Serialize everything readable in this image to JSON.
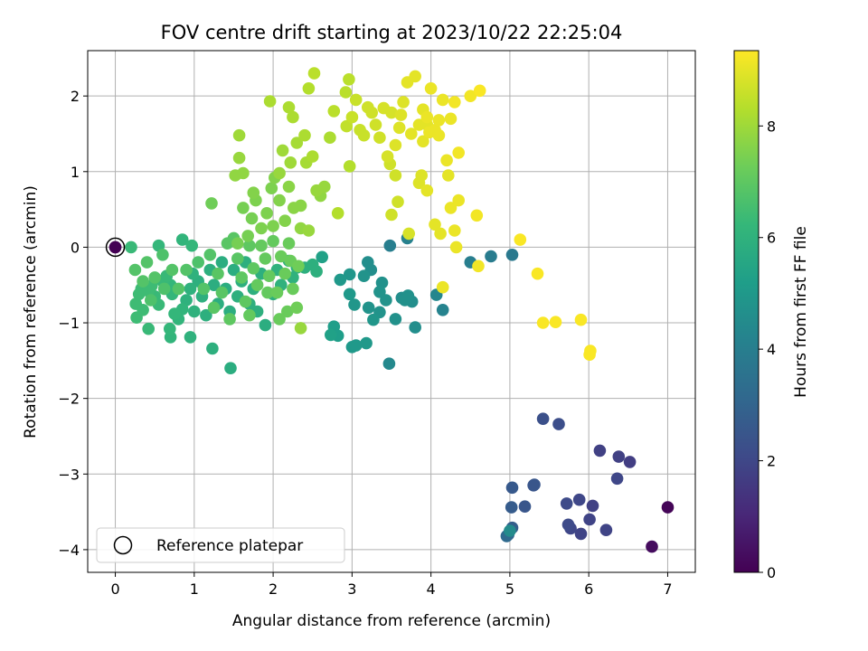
{
  "chart_data": {
    "type": "scatter",
    "title": "FOV centre drift starting at 2023/10/22 22:25:04",
    "xlabel": "Angular distance from reference (arcmin)",
    "ylabel": "Rotation from reference (arcmin)",
    "xlim": [
      -0.35,
      7.35
    ],
    "ylim": [
      -4.3,
      2.6
    ],
    "xticks": [
      0,
      1,
      2,
      3,
      4,
      5,
      6,
      7
    ],
    "yticks": [
      -4,
      -3,
      -2,
      -1,
      0,
      1,
      2
    ],
    "grid": true,
    "legend": {
      "placement": "lower-left",
      "entries": [
        "Reference platepar"
      ]
    },
    "colorbar": {
      "label": "Hours from first FF file",
      "range": [
        0,
        9.35
      ],
      "ticks": [
        0,
        2,
        4,
        6,
        8
      ],
      "colormap": "viridis"
    },
    "reference_point": {
      "x": 0,
      "y": 0,
      "hours": 0
    },
    "points": [
      [
        7.0,
        -3.44,
        0.1
      ],
      [
        6.8,
        -3.96,
        0.3
      ],
      [
        6.52,
        -2.84,
        1.7
      ],
      [
        6.38,
        -2.77,
        1.8
      ],
      [
        6.14,
        -2.69,
        1.8
      ],
      [
        6.36,
        -3.06,
        2.0
      ],
      [
        6.22,
        -3.74,
        1.9
      ],
      [
        6.05,
        -3.42,
        1.8
      ],
      [
        6.01,
        -3.6,
        1.9
      ],
      [
        5.9,
        -3.79,
        1.9
      ],
      [
        5.88,
        -3.34,
        2.0
      ],
      [
        5.77,
        -3.72,
        2.0
      ],
      [
        5.74,
        -3.67,
        2.1
      ],
      [
        5.72,
        -3.39,
        2.1
      ],
      [
        5.62,
        -2.34,
        2.2
      ],
      [
        5.42,
        -2.27,
        2.3
      ],
      [
        5.31,
        -3.14,
        2.5
      ],
      [
        5.3,
        -3.15,
        2.5
      ],
      [
        5.19,
        -3.43,
        2.5
      ],
      [
        5.03,
        -3.18,
        2.6
      ],
      [
        5.03,
        -3.71,
        2.8
      ],
      [
        5.02,
        -3.44,
        2.7
      ],
      [
        4.98,
        -3.8,
        3.0
      ],
      [
        4.96,
        -3.82,
        3.2
      ],
      [
        5.0,
        -3.75,
        4.5
      ],
      [
        5.03,
        -0.1,
        3.8
      ],
      [
        4.76,
        -0.12,
        3.9
      ],
      [
        4.5,
        -0.2,
        4.0
      ],
      [
        4.15,
        -0.83,
        4.2
      ],
      [
        4.07,
        -0.63,
        4.3
      ],
      [
        3.7,
        0.12,
        4.1
      ],
      [
        3.48,
        0.02,
        4.0
      ],
      [
        3.47,
        -1.54,
        4.4
      ],
      [
        3.8,
        -1.06,
        4.6
      ],
      [
        3.76,
        -0.72,
        4.6
      ],
      [
        3.71,
        -0.64,
        4.7
      ],
      [
        3.67,
        -0.7,
        4.7
      ],
      [
        3.63,
        -0.67,
        4.6
      ],
      [
        3.55,
        -0.95,
        4.7
      ],
      [
        3.43,
        -0.7,
        4.8
      ],
      [
        3.38,
        -0.47,
        4.7
      ],
      [
        3.35,
        -0.59,
        4.8
      ],
      [
        3.35,
        -0.86,
        4.8
      ],
      [
        3.24,
        -0.3,
        4.6
      ],
      [
        3.2,
        -0.2,
        4.6
      ],
      [
        3.21,
        -0.8,
        4.8
      ],
      [
        3.27,
        -0.96,
        4.9
      ],
      [
        3.18,
        -1.27,
        5.0
      ],
      [
        3.0,
        -1.32,
        5.0
      ],
      [
        3.05,
        -1.3,
        5.0
      ],
      [
        2.97,
        -0.62,
        5.0
      ],
      [
        2.97,
        -0.36,
        4.9
      ],
      [
        3.15,
        -0.38,
        4.8
      ],
      [
        2.85,
        -0.43,
        5.0
      ],
      [
        2.77,
        -1.05,
        5.2
      ],
      [
        2.82,
        -1.17,
        5.2
      ],
      [
        2.73,
        -1.16,
        5.3
      ],
      [
        2.62,
        -0.13,
        5.3
      ],
      [
        3.03,
        -0.76,
        4.9
      ],
      [
        0.0,
        0.0,
        0.0
      ],
      [
        0.2,
        0.0,
        6.3
      ],
      [
        0.55,
        0.02,
        6.2
      ],
      [
        0.85,
        0.1,
        6.1
      ],
      [
        0.97,
        0.02,
        6.2
      ],
      [
        1.46,
        -1.6,
        5.8
      ],
      [
        1.23,
        -1.34,
        5.9
      ],
      [
        0.95,
        -1.19,
        6.0
      ],
      [
        0.7,
        -1.19,
        6.1
      ],
      [
        0.69,
        -1.08,
        6.2
      ],
      [
        0.42,
        -1.08,
        6.3
      ],
      [
        0.35,
        -0.83,
        6.4
      ],
      [
        0.27,
        -0.93,
        6.4
      ],
      [
        0.26,
        -0.75,
        6.4
      ],
      [
        0.3,
        -0.62,
        6.4
      ],
      [
        0.33,
        -0.55,
        6.4
      ],
      [
        0.42,
        -0.58,
        6.4
      ],
      [
        0.46,
        -0.51,
        6.4
      ],
      [
        0.5,
        -0.65,
        6.3
      ],
      [
        0.55,
        -0.76,
        6.3
      ],
      [
        0.6,
        -0.45,
        6.3
      ],
      [
        0.65,
        -0.38,
        6.3
      ],
      [
        0.7,
        -0.5,
        6.2
      ],
      [
        0.72,
        -0.62,
        6.2
      ],
      [
        0.75,
        -0.88,
        6.2
      ],
      [
        0.8,
        -0.95,
        6.1
      ],
      [
        0.85,
        -0.82,
        6.1
      ],
      [
        0.9,
        -0.7,
        6.0
      ],
      [
        0.95,
        -0.55,
        6.0
      ],
      [
        0.98,
        -0.35,
        6.0
      ],
      [
        1.0,
        -0.85,
        6.0
      ],
      [
        1.05,
        -0.45,
        5.9
      ],
      [
        1.1,
        -0.65,
        5.9
      ],
      [
        1.15,
        -0.9,
        5.9
      ],
      [
        1.2,
        -0.3,
        5.9
      ],
      [
        1.25,
        -0.5,
        5.8
      ],
      [
        1.3,
        -0.75,
        5.8
      ],
      [
        1.35,
        -0.2,
        5.8
      ],
      [
        1.4,
        -0.55,
        5.8
      ],
      [
        1.45,
        -0.85,
        5.8
      ],
      [
        1.5,
        -0.3,
        5.8
      ],
      [
        1.55,
        -0.65,
        5.9
      ],
      [
        1.6,
        -0.45,
        5.9
      ],
      [
        1.65,
        -0.2,
        5.9
      ],
      [
        1.7,
        -0.75,
        5.9
      ],
      [
        1.75,
        -0.55,
        5.9
      ],
      [
        1.8,
        -0.85,
        5.9
      ],
      [
        1.85,
        -0.35,
        5.9
      ],
      [
        1.9,
        -1.03,
        5.8
      ],
      [
        2.0,
        -0.62,
        5.9
      ],
      [
        2.05,
        -0.3,
        6.0
      ],
      [
        2.1,
        -0.5,
        6.0
      ],
      [
        2.2,
        -0.18,
        6.0
      ],
      [
        2.25,
        -0.4,
        6.0
      ],
      [
        2.3,
        -0.27,
        6.0
      ],
      [
        2.4,
        -0.27,
        5.9
      ],
      [
        2.5,
        -0.23,
        5.9
      ],
      [
        2.55,
        -0.32,
        5.9
      ],
      [
        0.25,
        -0.3,
        6.8
      ],
      [
        0.35,
        -0.45,
        6.8
      ],
      [
        0.4,
        -0.2,
        6.8
      ],
      [
        0.5,
        -0.4,
        6.8
      ],
      [
        0.6,
        -0.1,
        6.7
      ],
      [
        0.62,
        -0.55,
        6.7
      ],
      [
        0.72,
        -0.3,
        6.8
      ],
      [
        0.8,
        -0.55,
        6.8
      ],
      [
        0.9,
        -0.3,
        6.8
      ],
      [
        1.05,
        -0.2,
        6.7
      ],
      [
        1.12,
        -0.55,
        6.8
      ],
      [
        1.2,
        -0.1,
        6.8
      ],
      [
        1.3,
        -0.35,
        6.9
      ],
      [
        1.35,
        -0.6,
        6.9
      ],
      [
        1.42,
        0.05,
        6.9
      ],
      [
        1.5,
        0.12,
        6.9
      ],
      [
        1.55,
        -0.15,
        6.9
      ],
      [
        1.6,
        -0.4,
        7.0
      ],
      [
        1.65,
        -0.72,
        7.0
      ],
      [
        1.7,
        0.02,
        7.0
      ],
      [
        1.75,
        -0.28,
        7.0
      ],
      [
        1.8,
        -0.5,
        7.1
      ],
      [
        1.85,
        0.02,
        7.1
      ],
      [
        1.9,
        -0.15,
        7.1
      ],
      [
        1.95,
        -0.38,
        7.1
      ],
      [
        2.0,
        0.08,
        7.1
      ],
      [
        2.05,
        -0.6,
        7.2
      ],
      [
        2.1,
        -0.12,
        7.2
      ],
      [
        2.15,
        -0.35,
        7.2
      ],
      [
        2.2,
        0.05,
        7.2
      ],
      [
        2.25,
        -0.55,
        7.2
      ],
      [
        2.3,
        -0.8,
        7.3
      ],
      [
        2.32,
        -0.25,
        7.3
      ],
      [
        2.18,
        -0.85,
        7.2
      ],
      [
        2.08,
        -0.95,
        7.2
      ],
      [
        1.7,
        -0.9,
        7.1
      ],
      [
        1.25,
        -0.8,
        6.9
      ],
      [
        0.45,
        -0.7,
        6.7
      ],
      [
        1.55,
        0.05,
        7.4
      ],
      [
        1.62,
        0.52,
        7.4
      ],
      [
        1.73,
        0.38,
        7.4
      ],
      [
        1.78,
        0.62,
        7.5
      ],
      [
        1.85,
        0.25,
        7.5
      ],
      [
        1.92,
        0.45,
        7.5
      ],
      [
        1.98,
        0.78,
        7.5
      ],
      [
        2.02,
        0.92,
        7.6
      ],
      [
        2.08,
        0.62,
        7.6
      ],
      [
        2.15,
        0.35,
        7.6
      ],
      [
        2.2,
        0.8,
        7.7
      ],
      [
        2.26,
        0.52,
        7.7
      ],
      [
        2.35,
        0.25,
        7.8
      ],
      [
        1.62,
        0.98,
        7.8
      ],
      [
        1.52,
        0.95,
        7.8
      ],
      [
        1.57,
        1.18,
        7.9
      ],
      [
        1.57,
        1.48,
        8.0
      ],
      [
        1.22,
        0.58,
        7.3
      ],
      [
        2.0,
        0.28,
        7.5
      ],
      [
        1.68,
        0.15,
        7.4
      ],
      [
        1.75,
        0.72,
        7.6
      ],
      [
        1.45,
        -0.95,
        7.0
      ],
      [
        1.96,
        1.93,
        8.2
      ],
      [
        2.08,
        0.98,
        7.9
      ],
      [
        2.12,
        1.28,
        8.0
      ],
      [
        2.22,
        1.12,
        8.0
      ],
      [
        2.25,
        1.72,
        8.2
      ],
      [
        2.2,
        1.85,
        8.2
      ],
      [
        2.3,
        1.38,
        8.1
      ],
      [
        2.4,
        1.48,
        8.2
      ],
      [
        2.42,
        1.12,
        8.1
      ],
      [
        2.45,
        2.1,
        8.3
      ],
      [
        2.5,
        1.2,
        8.2
      ],
      [
        2.52,
        2.3,
        8.4
      ],
      [
        2.55,
        0.75,
        7.9
      ],
      [
        2.6,
        0.68,
        7.8
      ],
      [
        2.65,
        0.8,
        7.9
      ],
      [
        2.72,
        1.45,
        8.2
      ],
      [
        2.77,
        1.8,
        8.4
      ],
      [
        2.82,
        0.45,
        8.3
      ],
      [
        2.35,
        0.55,
        7.7
      ],
      [
        2.45,
        0.22,
        7.9
      ],
      [
        2.35,
        -1.07,
        7.9
      ],
      [
        2.22,
        -0.18,
        7.2
      ],
      [
        1.93,
        -0.6,
        7.1
      ],
      [
        2.93,
        1.6,
        8.5
      ],
      [
        2.97,
        1.07,
        8.3
      ],
      [
        3.0,
        1.72,
        8.6
      ],
      [
        3.05,
        1.95,
        8.6
      ],
      [
        3.1,
        1.55,
        8.6
      ],
      [
        3.15,
        1.48,
        8.6
      ],
      [
        3.2,
        1.85,
        8.7
      ],
      [
        3.25,
        1.78,
        8.7
      ],
      [
        3.3,
        1.62,
        8.7
      ],
      [
        3.35,
        1.45,
        8.7
      ],
      [
        3.4,
        1.84,
        8.8
      ],
      [
        3.45,
        1.2,
        8.8
      ],
      [
        3.5,
        1.78,
        8.8
      ],
      [
        3.55,
        1.35,
        8.9
      ],
      [
        3.6,
        1.58,
        8.9
      ],
      [
        3.65,
        1.92,
        8.9
      ],
      [
        3.7,
        2.18,
        9.0
      ],
      [
        3.75,
        1.5,
        9.0
      ],
      [
        3.8,
        2.26,
        9.0
      ],
      [
        3.85,
        1.62,
        9.0
      ],
      [
        3.9,
        1.4,
        9.0
      ],
      [
        3.95,
        1.72,
        9.1
      ],
      [
        4.0,
        2.1,
        9.1
      ],
      [
        4.05,
        1.55,
        9.1
      ],
      [
        4.1,
        1.68,
        9.1
      ],
      [
        4.15,
        1.95,
        9.1
      ],
      [
        4.2,
        1.15,
        9.1
      ],
      [
        4.25,
        1.7,
        9.1
      ],
      [
        4.3,
        1.92,
        9.2
      ],
      [
        4.35,
        1.25,
        9.2
      ],
      [
        4.5,
        2.0,
        9.2
      ],
      [
        4.62,
        2.07,
        9.3
      ],
      [
        2.92,
        2.05,
        8.4
      ],
      [
        2.96,
        2.22,
        8.4
      ],
      [
        3.48,
        1.1,
        8.7
      ],
      [
        3.55,
        0.95,
        8.7
      ],
      [
        3.72,
        0.18,
        8.8
      ],
      [
        3.85,
        0.85,
        8.9
      ],
      [
        3.95,
        0.75,
        9.0
      ],
      [
        4.05,
        0.3,
        9.0
      ],
      [
        4.12,
        0.18,
        9.0
      ],
      [
        4.22,
        0.95,
        9.0
      ],
      [
        4.25,
        0.52,
        9.1
      ],
      [
        4.3,
        0.22,
        9.1
      ],
      [
        4.32,
        0.0,
        9.1
      ],
      [
        4.35,
        0.62,
        9.1
      ],
      [
        4.15,
        -0.53,
        9.1
      ],
      [
        4.58,
        0.42,
        9.2
      ],
      [
        4.6,
        -0.25,
        9.2
      ],
      [
        3.62,
        1.75,
        8.9
      ],
      [
        3.9,
        1.82,
        9.0
      ],
      [
        3.98,
        1.52,
        9.1
      ],
      [
        4.1,
        1.48,
        9.1
      ],
      [
        3.5,
        0.43,
        8.7
      ],
      [
        3.58,
        0.6,
        8.7
      ],
      [
        3.88,
        0.95,
        8.9
      ],
      [
        3.95,
        1.62,
        9.0
      ],
      [
        5.13,
        0.1,
        9.3
      ],
      [
        5.35,
        -0.35,
        9.3
      ],
      [
        5.42,
        -1.0,
        9.3
      ],
      [
        5.58,
        -0.99,
        9.3
      ],
      [
        5.9,
        -0.96,
        9.3
      ],
      [
        6.02,
        -1.37,
        9.3
      ],
      [
        6.01,
        -1.42,
        9.3
      ]
    ]
  }
}
